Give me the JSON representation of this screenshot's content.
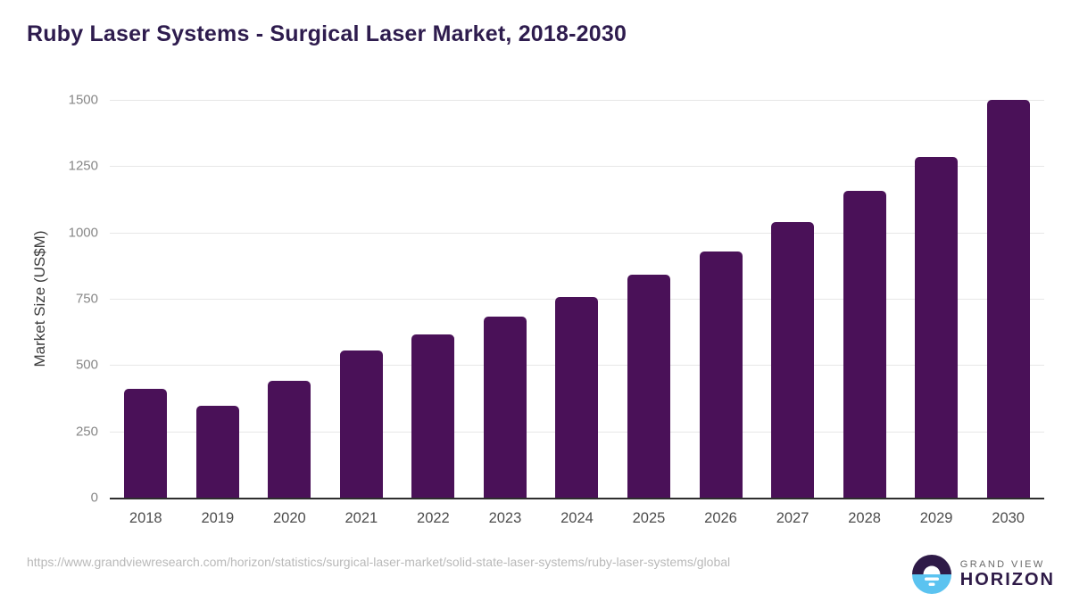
{
  "chart_data": {
    "type": "bar",
    "title": "Ruby Laser Systems - Surgical Laser Market, 2018-2030",
    "categories": [
      "2018",
      "2019",
      "2020",
      "2021",
      "2022",
      "2023",
      "2024",
      "2025",
      "2026",
      "2027",
      "2028",
      "2029",
      "2030"
    ],
    "values": [
      412,
      347,
      440,
      555,
      615,
      683,
      757,
      840,
      929,
      1038,
      1156,
      1286,
      1500
    ],
    "xlabel": "",
    "ylabel": "Market Size (US$M)",
    "ylim": [
      0,
      1500
    ],
    "yticks": [
      0,
      250,
      500,
      750,
      1000,
      1250,
      1500
    ],
    "grid": "horizontal",
    "legend": "none"
  },
  "footer": {
    "source_url": "https://www.grandviewresearch.com/horizon/statistics/surgical-laser-market/solid-state-laser-systems/ruby-laser-systems/global",
    "logo": {
      "top_text": "GRAND VIEW",
      "bottom_text": "HORIZON"
    }
  },
  "colors": {
    "bar": "#4a1158",
    "title": "#2e1c4e",
    "grid": "#e7e7e7",
    "axis": "#2e2e2e",
    "ytick": "#878787",
    "xtick": "#4d4d4d",
    "yaxis_title": "#3b3b3b",
    "url": "#b9b9b9",
    "logo_purple": "#2e1a47",
    "logo_blue": "#5bc3f0",
    "logo_gray": "#696969"
  }
}
